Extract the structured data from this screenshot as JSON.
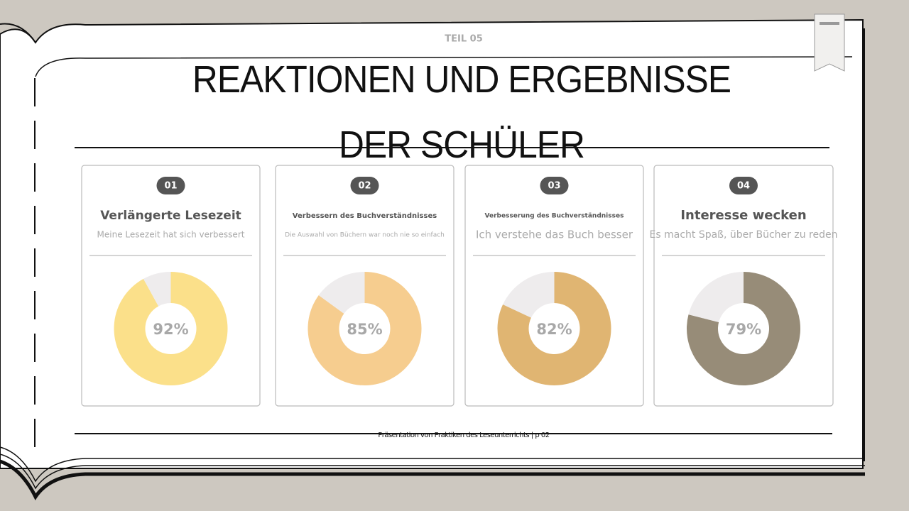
{
  "header": {
    "kicker": "TEIL 05",
    "title": "REAKTIONEN UND ERGEBNISSE DER SCHÜLER"
  },
  "footer": "Präsentation von Praktiken des Leseunterrichts | p 02",
  "chart_data": [
    {
      "type": "pie",
      "number": "01",
      "title": "Verlängerte Lesezeit",
      "subtitle": "Meine Lesezeit hat sich verbessert",
      "values": [
        92,
        8
      ],
      "value_labels": [
        "92%",
        null
      ],
      "colors": [
        "#fbe08a",
        "#eeeced"
      ]
    },
    {
      "type": "pie",
      "number": "02",
      "title": "Verbessern des Buchverständnisses",
      "subtitle": "Die Auswahl von Büchern war noch nie so einfach",
      "values": [
        85,
        15
      ],
      "value_labels": [
        "85%",
        null
      ],
      "colors": [
        "#f6cd8f",
        "#eeeced"
      ]
    },
    {
      "type": "pie",
      "number": "03",
      "title": "Verbesserung des Buchverständnisses",
      "subtitle": "Ich verstehe das Buch besser",
      "values": [
        82,
        18
      ],
      "value_labels": [
        "82%",
        null
      ],
      "colors": [
        "#e0b572",
        "#eeeced"
      ]
    },
    {
      "type": "pie",
      "number": "04",
      "title": "Interesse wecken",
      "subtitle": "Es macht Spaß, über Bücher zu reden",
      "values": [
        79,
        21
      ],
      "value_labels": [
        "79%",
        null
      ],
      "colors": [
        "#978c78",
        "#eeeced"
      ]
    }
  ]
}
